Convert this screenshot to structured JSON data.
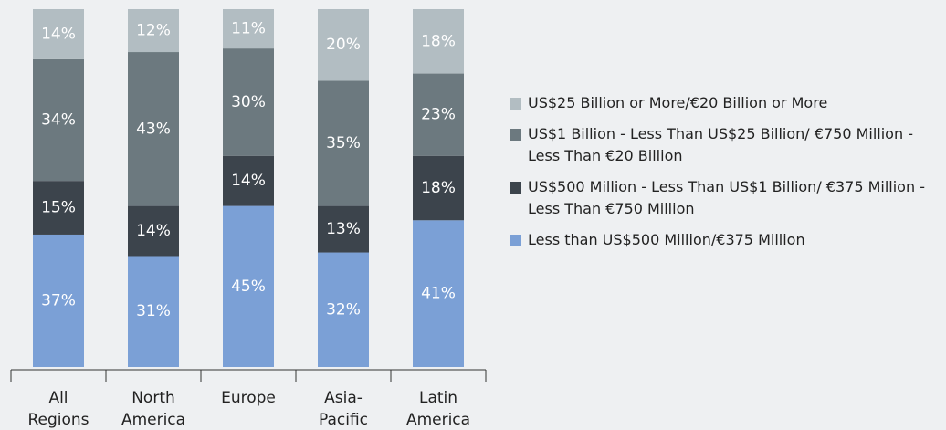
{
  "chart_data": {
    "type": "stacked_bar",
    "categories": [
      "All Regions",
      "North America",
      "Europe",
      "Asia-Pacific",
      "Latin America"
    ],
    "series": [
      {
        "name": "Less than US$500 Million/€375 Million",
        "color": "#7ba0d6",
        "values": [
          37,
          31,
          45,
          32,
          41
        ],
        "value_labels": [
          "37%",
          "31%",
          "45%",
          "32%",
          "41%"
        ]
      },
      {
        "name": "US$500 Million - Less Than US$1 Billion/ €375 Million - Less Than €750 Million",
        "color": "#3c444c",
        "values": [
          15,
          14,
          14,
          13,
          18
        ],
        "value_labels": [
          "15%",
          "14%",
          "14%",
          "13%",
          "18%"
        ]
      },
      {
        "name": "US$1 Billion - Less Than US$25 Billion/ €750 Million - Less Than €20 Billion",
        "color": "#6c797f",
        "values": [
          34,
          43,
          30,
          35,
          23
        ],
        "value_labels": [
          "34%",
          "43%",
          "30%",
          "35%",
          "23%"
        ]
      },
      {
        "name": "US$25 Billion or More/€20 Billion or More",
        "color": "#b2bdc2",
        "values": [
          14,
          12,
          11,
          20,
          18
        ],
        "value_labels": [
          "14%",
          "12%",
          "11%",
          "20%",
          "18%"
        ]
      }
    ],
    "ylim": [
      0,
      100
    ],
    "legend": "right"
  }
}
